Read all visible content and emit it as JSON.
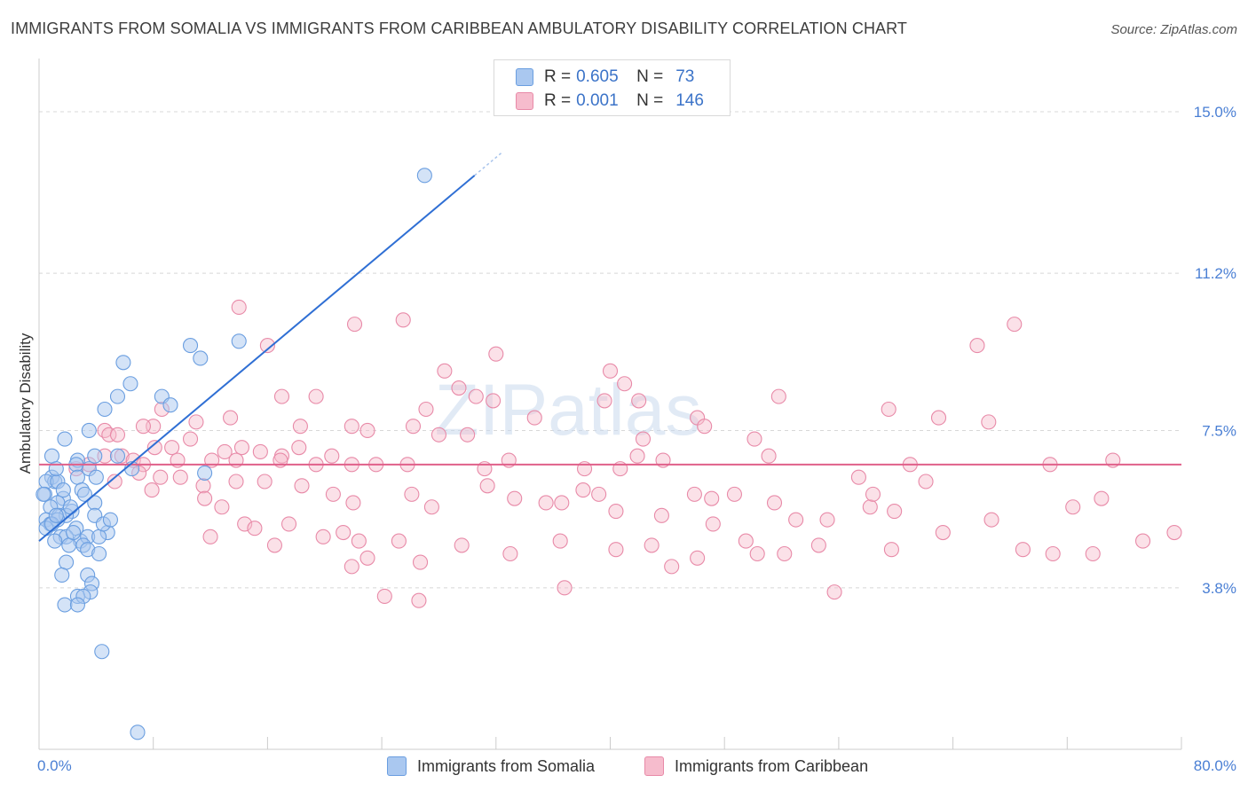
{
  "title": "IMMIGRANTS FROM SOMALIA VS IMMIGRANTS FROM CARIBBEAN AMBULATORY DISABILITY CORRELATION CHART",
  "source": "Source: ZipAtlas.com",
  "watermark": "ZIPatlas",
  "colors": {
    "somalia_fill": "#aac8f0",
    "somalia_stroke": "#6a9ee0",
    "somalia_line": "#2f6fd4",
    "caribbean_fill": "#f6bccd",
    "caribbean_stroke": "#e88aa8",
    "caribbean_line": "#e0608a",
    "grid": "#d8d8d8",
    "tick_text": "#4a7fd4"
  },
  "legend": {
    "rows": [
      {
        "r_label": "R =",
        "r_value": "0.605",
        "n_label": "N =",
        "n_value": "73"
      },
      {
        "r_label": "R =",
        "r_value": "0.001",
        "n_label": "N =",
        "n_value": "146"
      }
    ]
  },
  "bottom_legend": {
    "somalia": "Immigrants from Somalia",
    "caribbean": "Immigrants from Caribbean"
  },
  "chart_data": {
    "type": "scatter",
    "title": "IMMIGRANTS FROM SOMALIA VS IMMIGRANTS FROM CARIBBEAN AMBULATORY DISABILITY CORRELATION CHART",
    "xlabel": "",
    "ylabel": "Ambulatory Disability",
    "xlim": [
      0,
      80
    ],
    "ylim": [
      0,
      16
    ],
    "x_tick_labels": [
      "0.0%",
      "80.0%"
    ],
    "y_ticks": [
      3.8,
      7.5,
      11.2,
      15.0
    ],
    "y_tick_labels": [
      "3.8%",
      "7.5%",
      "11.2%",
      "15.0%"
    ],
    "series": [
      {
        "name": "Immigrants from Somalia",
        "R": 0.605,
        "N": 73,
        "trend": {
          "x": [
            0.0,
            30.5
          ],
          "y": [
            4.9,
            13.5
          ],
          "dashed_extension_to_x": 32.5
        },
        "points": [
          [
            27.0,
            13.5
          ],
          [
            14.0,
            9.6
          ],
          [
            10.6,
            9.5
          ],
          [
            11.3,
            9.2
          ],
          [
            5.9,
            9.1
          ],
          [
            6.4,
            8.6
          ],
          [
            5.5,
            8.3
          ],
          [
            8.6,
            8.3
          ],
          [
            9.2,
            8.1
          ],
          [
            4.6,
            8.0
          ],
          [
            1.8,
            7.3
          ],
          [
            3.5,
            7.5
          ],
          [
            2.7,
            6.8
          ],
          [
            5.5,
            6.9
          ],
          [
            3.5,
            6.6
          ],
          [
            3.9,
            6.9
          ],
          [
            0.9,
            6.4
          ],
          [
            0.9,
            6.9
          ],
          [
            2.6,
            6.7
          ],
          [
            1.1,
            6.3
          ],
          [
            2.7,
            6.4
          ],
          [
            4.0,
            6.4
          ],
          [
            6.5,
            6.6
          ],
          [
            11.6,
            6.5
          ],
          [
            0.5,
            6.3
          ],
          [
            1.3,
            6.3
          ],
          [
            0.4,
            6.0
          ],
          [
            1.7,
            5.9
          ],
          [
            1.3,
            5.8
          ],
          [
            3.9,
            5.8
          ],
          [
            0.8,
            5.7
          ],
          [
            1.4,
            5.5
          ],
          [
            2.3,
            5.6
          ],
          [
            3.9,
            5.5
          ],
          [
            1.9,
            5.5
          ],
          [
            0.5,
            5.4
          ],
          [
            1.3,
            5.4
          ],
          [
            0.8,
            5.3
          ],
          [
            2.6,
            5.2
          ],
          [
            4.8,
            5.1
          ],
          [
            0.5,
            5.2
          ],
          [
            1.5,
            5.0
          ],
          [
            1.9,
            5.0
          ],
          [
            2.9,
            4.9
          ],
          [
            3.4,
            5.0
          ],
          [
            4.2,
            5.0
          ],
          [
            1.1,
            4.9
          ],
          [
            2.1,
            4.8
          ],
          [
            3.1,
            4.8
          ],
          [
            3.4,
            4.7
          ],
          [
            4.2,
            4.6
          ],
          [
            1.9,
            4.4
          ],
          [
            1.6,
            4.1
          ],
          [
            3.4,
            4.1
          ],
          [
            3.7,
            3.9
          ],
          [
            3.6,
            3.7
          ],
          [
            2.7,
            3.6
          ],
          [
            3.1,
            3.6
          ],
          [
            1.8,
            3.4
          ],
          [
            2.7,
            3.4
          ],
          [
            4.4,
            2.3
          ],
          [
            6.9,
            0.4
          ],
          [
            1.2,
            6.6
          ],
          [
            3.0,
            6.1
          ],
          [
            1.7,
            6.1
          ],
          [
            0.3,
            6.0
          ],
          [
            2.2,
            5.7
          ],
          [
            4.5,
            5.3
          ],
          [
            5.0,
            5.4
          ],
          [
            0.9,
            5.3
          ],
          [
            2.4,
            5.1
          ],
          [
            1.2,
            5.5
          ],
          [
            3.2,
            6.0
          ]
        ]
      },
      {
        "name": "Immigrants from Caribbean",
        "R": 0.001,
        "N": 146,
        "trend": {
          "x": [
            0.0,
            80.0
          ],
          "y": [
            6.7,
            6.7
          ]
        },
        "points": [
          [
            14.0,
            10.4
          ],
          [
            22.1,
            10.0
          ],
          [
            25.5,
            10.1
          ],
          [
            68.3,
            10.0
          ],
          [
            16.0,
            9.5
          ],
          [
            32.0,
            9.3
          ],
          [
            65.7,
            9.5
          ],
          [
            28.4,
            8.9
          ],
          [
            40.0,
            8.9
          ],
          [
            29.4,
            8.5
          ],
          [
            41.0,
            8.6
          ],
          [
            17.0,
            8.3
          ],
          [
            19.4,
            8.3
          ],
          [
            30.6,
            8.3
          ],
          [
            31.8,
            8.2
          ],
          [
            39.6,
            8.2
          ],
          [
            42.0,
            8.2
          ],
          [
            51.8,
            8.3
          ],
          [
            27.1,
            8.0
          ],
          [
            59.5,
            8.0
          ],
          [
            8.6,
            8.0
          ],
          [
            13.4,
            7.8
          ],
          [
            21.9,
            7.6
          ],
          [
            26.2,
            7.6
          ],
          [
            34.7,
            7.8
          ],
          [
            46.1,
            7.8
          ],
          [
            46.6,
            7.6
          ],
          [
            63.0,
            7.8
          ],
          [
            66.5,
            7.7
          ],
          [
            8.0,
            7.6
          ],
          [
            11.0,
            7.7
          ],
          [
            4.6,
            7.5
          ],
          [
            4.9,
            7.4
          ],
          [
            5.5,
            7.4
          ],
          [
            7.3,
            7.6
          ],
          [
            18.3,
            7.6
          ],
          [
            23.0,
            7.5
          ],
          [
            28.0,
            7.4
          ],
          [
            30.0,
            7.4
          ],
          [
            42.3,
            7.3
          ],
          [
            50.1,
            7.3
          ],
          [
            10.6,
            7.3
          ],
          [
            9.3,
            7.1
          ],
          [
            8.1,
            7.1
          ],
          [
            13.0,
            7.0
          ],
          [
            14.2,
            7.1
          ],
          [
            15.5,
            7.0
          ],
          [
            17.0,
            6.9
          ],
          [
            18.2,
            7.1
          ],
          [
            20.5,
            6.9
          ],
          [
            4.6,
            6.9
          ],
          [
            5.8,
            6.9
          ],
          [
            6.6,
            6.8
          ],
          [
            7.3,
            6.7
          ],
          [
            9.7,
            6.8
          ],
          [
            12.1,
            6.8
          ],
          [
            13.8,
            6.8
          ],
          [
            16.9,
            6.8
          ],
          [
            19.4,
            6.7
          ],
          [
            21.9,
            6.7
          ],
          [
            23.6,
            6.7
          ],
          [
            25.8,
            6.7
          ],
          [
            31.2,
            6.6
          ],
          [
            32.9,
            6.8
          ],
          [
            38.2,
            6.6
          ],
          [
            40.7,
            6.6
          ],
          [
            41.9,
            6.9
          ],
          [
            43.7,
            6.8
          ],
          [
            51.1,
            6.9
          ],
          [
            61.0,
            6.7
          ],
          [
            2.6,
            6.6
          ],
          [
            3.5,
            6.7
          ],
          [
            5.3,
            6.3
          ],
          [
            7.0,
            6.5
          ],
          [
            8.5,
            6.4
          ],
          [
            9.9,
            6.4
          ],
          [
            11.5,
            6.2
          ],
          [
            13.8,
            6.3
          ],
          [
            15.8,
            6.3
          ],
          [
            18.4,
            6.2
          ],
          [
            20.6,
            6.0
          ],
          [
            22.0,
            5.8
          ],
          [
            26.1,
            6.0
          ],
          [
            27.5,
            5.7
          ],
          [
            31.4,
            6.2
          ],
          [
            33.3,
            5.9
          ],
          [
            35.5,
            5.8
          ],
          [
            36.6,
            5.8
          ],
          [
            38.1,
            6.1
          ],
          [
            39.2,
            6.0
          ],
          [
            40.4,
            5.6
          ],
          [
            43.6,
            5.5
          ],
          [
            45.9,
            6.0
          ],
          [
            47.1,
            5.9
          ],
          [
            48.7,
            6.0
          ],
          [
            51.5,
            5.8
          ],
          [
            53.0,
            5.4
          ],
          [
            55.2,
            5.4
          ],
          [
            58.2,
            5.7
          ],
          [
            59.9,
            5.6
          ],
          [
            7.9,
            6.1
          ],
          [
            11.6,
            5.9
          ],
          [
            12.8,
            5.7
          ],
          [
            14.4,
            5.3
          ],
          [
            15.1,
            5.2
          ],
          [
            17.5,
            5.3
          ],
          [
            19.9,
            5.0
          ],
          [
            21.3,
            5.1
          ],
          [
            22.4,
            4.9
          ],
          [
            23.0,
            4.5
          ],
          [
            25.2,
            4.9
          ],
          [
            29.6,
            4.8
          ],
          [
            33.0,
            4.6
          ],
          [
            36.5,
            4.9
          ],
          [
            40.4,
            4.7
          ],
          [
            42.9,
            4.8
          ],
          [
            46.1,
            4.5
          ],
          [
            49.5,
            4.9
          ],
          [
            50.3,
            4.6
          ],
          [
            54.6,
            4.8
          ],
          [
            59.7,
            4.7
          ],
          [
            63.3,
            5.1
          ],
          [
            66.7,
            5.4
          ],
          [
            68.9,
            4.7
          ],
          [
            71.0,
            4.6
          ],
          [
            74.4,
            5.9
          ],
          [
            73.8,
            4.6
          ],
          [
            75.2,
            6.8
          ],
          [
            77.3,
            4.9
          ],
          [
            79.5,
            5.1
          ],
          [
            24.2,
            3.6
          ],
          [
            26.6,
            3.5
          ],
          [
            36.8,
            3.8
          ],
          [
            12.0,
            5.0
          ],
          [
            16.5,
            4.8
          ],
          [
            21.9,
            4.3
          ],
          [
            26.7,
            4.4
          ],
          [
            44.3,
            4.3
          ],
          [
            47.2,
            5.3
          ],
          [
            52.2,
            4.6
          ],
          [
            55.7,
            3.7
          ],
          [
            57.4,
            6.4
          ],
          [
            58.4,
            6.0
          ],
          [
            62.1,
            6.3
          ],
          [
            70.8,
            6.7
          ],
          [
            72.4,
            5.7
          ]
        ]
      }
    ]
  }
}
